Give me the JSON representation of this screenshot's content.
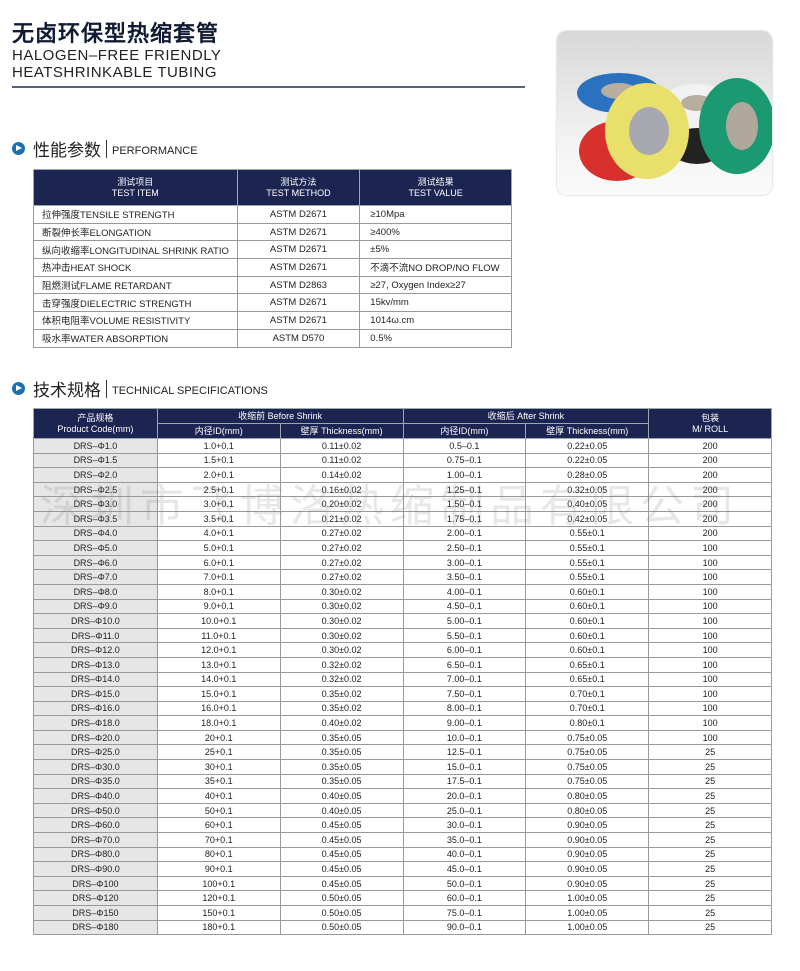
{
  "header": {
    "title": "无卤环保型热缩套管",
    "subtitle_line1": "HALOGEN–FREE FRIENDLY",
    "subtitle_line2": "HEATSHRINKABLE TUBING"
  },
  "performance": {
    "section_zh": "性能参数",
    "section_en": "PERFORMANCE",
    "headers": [
      {
        "zh": "测试项目",
        "en": "TEST ITEM"
      },
      {
        "zh": "测试方法",
        "en": "TEST METHOD"
      },
      {
        "zh": "测试结果",
        "en": "TEST VALUE"
      }
    ],
    "rows": [
      [
        "拉伸强度TENSILE STRENGTH",
        "ASTM D2671",
        "≥10Mpa"
      ],
      [
        "断裂伸长率ELONGATION",
        "ASTM D2671",
        "≥400%"
      ],
      [
        "纵向收缩率LONGITUDINAL SHRINK RATIO",
        "ASTM D2671",
        "±5%"
      ],
      [
        "热冲击HEAT SHOCK",
        "ASTM D2671",
        "不滴不流NO DROP/NO FLOW"
      ],
      [
        "阻燃测试FLAME RETARDANT",
        "ASTM D2863",
        "≥27, Oxygen Index≥27"
      ],
      [
        "击穿强度DIELECTRIC STRENGTH",
        "ASTM D2671",
        "15kv/mm"
      ],
      [
        "体积电阻率VOLUME RESISTIVITY",
        "ASTM D2671",
        "1014ω.cm"
      ],
      [
        "吸水率WATER ABSORPTION",
        "ASTM D570",
        "0.5%"
      ]
    ]
  },
  "specs": {
    "section_zh": "技术规格",
    "section_en": "TECHNICAL SPECIFICATIONS",
    "headers": {
      "code_zh": "产品规格",
      "code_en": "Product Code(mm)",
      "before": "收缩前 Before Shrink",
      "after": "收缩后 After Shrink",
      "id": "内径ID(mm)",
      "thickness": "壁厚 Thickness(mm)",
      "pack_zh": "包装",
      "pack_en": "M/ ROLL"
    },
    "rows": [
      [
        "DRS–Φ1.0",
        "1.0+0.1",
        "0.11±0.02",
        "0.5–0.1",
        "0.22±0.05",
        "200"
      ],
      [
        "DRS–Φ1.5",
        "1.5+0.1",
        "0.11±0.02",
        "0.75–0.1",
        "0.22±0.05",
        "200"
      ],
      [
        "DRS–Φ2.0",
        "2.0+0.1",
        "0.14±0.02",
        "1.00–0.1",
        "0.28±0.05",
        "200"
      ],
      [
        "DRS–Φ2.5",
        "2.5+0.1",
        "0.16±0.02",
        "1.25–0.1",
        "0.32±0.05",
        "200"
      ],
      [
        "DRS–Φ3.0",
        "3.0+0.1",
        "0.20±0.02",
        "1.50–0.1",
        "0.40±0.05",
        "200"
      ],
      [
        "DRS–Φ3.5",
        "3.5+0.1",
        "0.21±0.02",
        "1.75–0.1",
        "0.42±0.05",
        "200"
      ],
      [
        "DRS–Φ4.0",
        "4.0+0.1",
        "0.27±0.02",
        "2.00–0.1",
        "0.55±0.1",
        "200"
      ],
      [
        "DRS–Φ5.0",
        "5.0+0.1",
        "0.27±0.02",
        "2.50–0.1",
        "0.55±0.1",
        "100"
      ],
      [
        "DRS–Φ6.0",
        "6.0+0.1",
        "0.27±0.02",
        "3.00–0.1",
        "0.55±0.1",
        "100"
      ],
      [
        "DRS–Φ7.0",
        "7.0+0.1",
        "0.27±0.02",
        "3.50–0.1",
        "0.55±0.1",
        "100"
      ],
      [
        "DRS–Φ8.0",
        "8.0+0.1",
        "0.30±0.02",
        "4.00–0.1",
        "0.60±0.1",
        "100"
      ],
      [
        "DRS–Φ9.0",
        "9.0+0.1",
        "0.30±0.02",
        "4.50–0.1",
        "0.60±0.1",
        "100"
      ],
      [
        "DRS–Φ10.0",
        "10.0+0.1",
        "0.30±0.02",
        "5.00–0.1",
        "0.60±0.1",
        "100"
      ],
      [
        "DRS–Φ11.0",
        "11.0+0.1",
        "0.30±0.02",
        "5.50–0.1",
        "0.60±0.1",
        "100"
      ],
      [
        "DRS–Φ12.0",
        "12.0+0.1",
        "0.30±0.02",
        "6.00–0.1",
        "0.60±0.1",
        "100"
      ],
      [
        "DRS–Φ13.0",
        "13.0+0.1",
        "0.32±0.02",
        "6.50–0.1",
        "0.65±0.1",
        "100"
      ],
      [
        "DRS–Φ14.0",
        "14.0+0.1",
        "0.32±0.02",
        "7.00–0.1",
        "0.65±0.1",
        "100"
      ],
      [
        "DRS–Φ15.0",
        "15.0+0.1",
        "0.35±0.02",
        "7.50–0.1",
        "0.70±0.1",
        "100"
      ],
      [
        "DRS–Φ16.0",
        "16.0+0.1",
        "0.35±0.02",
        "8.00–0.1",
        "0.70±0.1",
        "100"
      ],
      [
        "DRS–Φ18.0",
        "18.0+0.1",
        "0.40±0.02",
        "9.00–0.1",
        "0.80±0.1",
        "100"
      ],
      [
        "DRS–Φ20.0",
        "20+0.1",
        "0.35±0.05",
        "10.0–0.1",
        "0.75±0.05",
        "100"
      ],
      [
        "DRS–Φ25.0",
        "25+0.1",
        "0.35±0.05",
        "12.5–0.1",
        "0.75±0.05",
        "25"
      ],
      [
        "DRS–Φ30.0",
        "30+0.1",
        "0.35±0.05",
        "15.0–0.1",
        "0.75±0.05",
        "25"
      ],
      [
        "DRS–Φ35.0",
        "35+0.1",
        "0.35±0.05",
        "17.5–0.1",
        "0.75±0.05",
        "25"
      ],
      [
        "DRS–Φ40.0",
        "40+0.1",
        "0.40±0.05",
        "20.0–0.1",
        "0.80±0.05",
        "25"
      ],
      [
        "DRS–Φ50.0",
        "50+0.1",
        "0.40±0.05",
        "25.0–0.1",
        "0.80±0.05",
        "25"
      ],
      [
        "DRS–Φ60.0",
        "60+0.1",
        "0.45±0.05",
        "30.0–0.1",
        "0.90±0.05",
        "25"
      ],
      [
        "DRS–Φ70.0",
        "70+0.1",
        "0.45±0.05",
        "35.0–0.1",
        "0.90±0.05",
        "25"
      ],
      [
        "DRS–Φ80.0",
        "80+0.1",
        "0.45±0.05",
        "40.0–0.1",
        "0.90±0.05",
        "25"
      ],
      [
        "DRS–Φ90.0",
        "90+0.1",
        "0.45±0.05",
        "45.0–0.1",
        "0.90±0.05",
        "25"
      ],
      [
        "DRS–Φ100",
        "100+0.1",
        "0.45±0.05",
        "50.0–0.1",
        "0.90±0.05",
        "25"
      ],
      [
        "DRS–Φ120",
        "120+0.1",
        "0.50±0.05",
        "60.0–0.1",
        "1.00±0.05",
        "25"
      ],
      [
        "DRS–Φ150",
        "150+0.1",
        "0.50±0.05",
        "75.0–0.1",
        "1.00±0.05",
        "25"
      ],
      [
        "DRS–Φ180",
        "180+0.1",
        "0.50±0.05",
        "90.0–0.1",
        "1.00±0.05",
        "25"
      ]
    ]
  },
  "watermark": "深圳市飞博洛热缩制品有限公司",
  "colors": {
    "header_navy": "#1c2452",
    "code_column": "#e6e6e6",
    "section_icon": "#1f6fb3"
  }
}
